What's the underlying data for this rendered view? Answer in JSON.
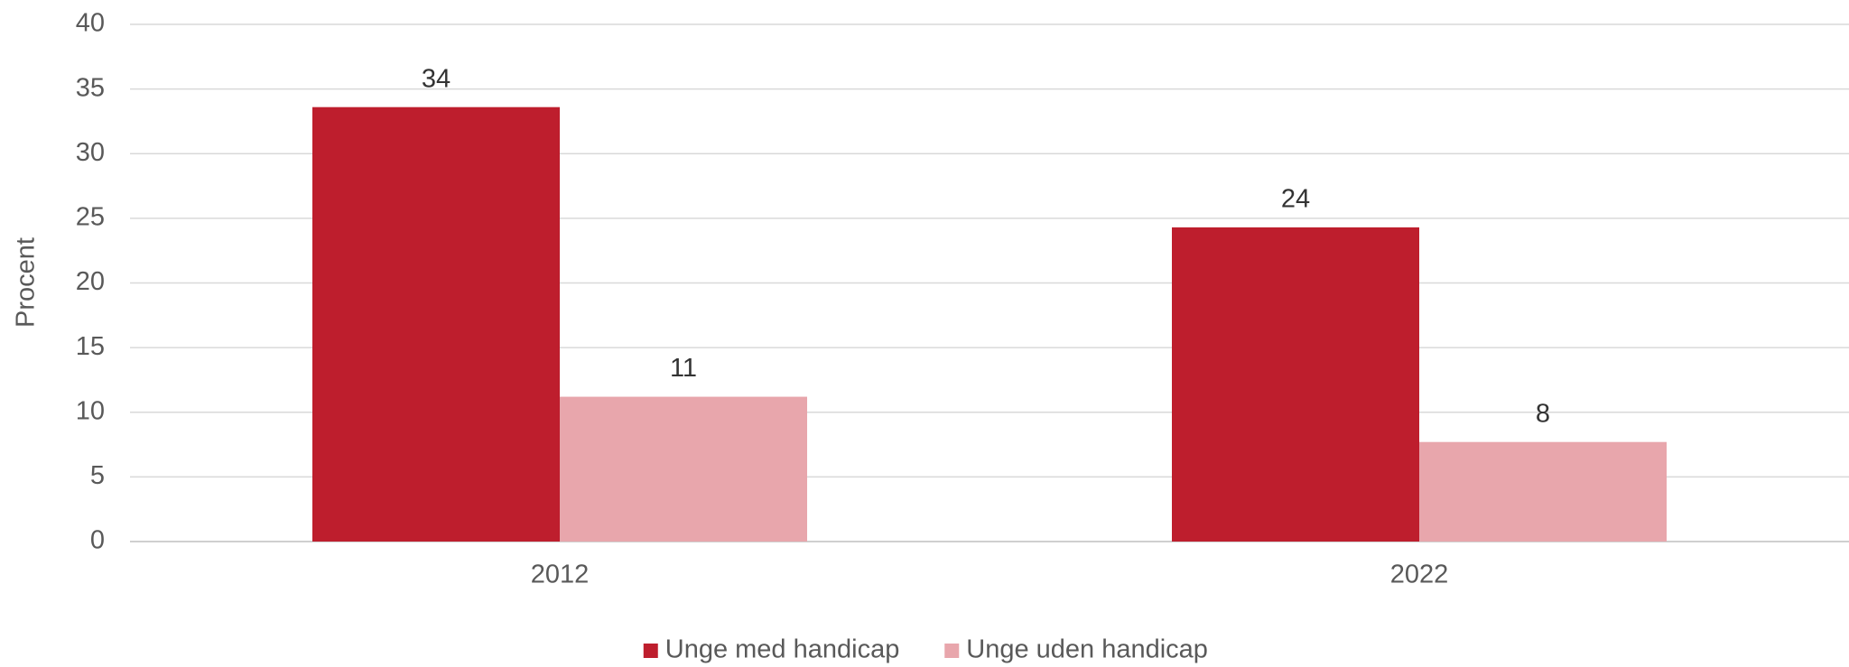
{
  "chart_data": {
    "type": "bar",
    "y_label": "Procent",
    "categories": [
      "2012",
      "2022"
    ],
    "series": [
      {
        "name": "Unge med handicap",
        "color": "#be1e2d",
        "values": [
          33.6,
          24.3
        ],
        "value_labels": [
          "34",
          "24"
        ]
      },
      {
        "name": "Unge uden handicap",
        "color": "#e8a6ac",
        "values": [
          11.2,
          7.7
        ],
        "value_labels": [
          "11",
          "8"
        ]
      }
    ],
    "ylim": [
      0,
      40
    ],
    "yticks": [
      0,
      5,
      10,
      15,
      20,
      25,
      30,
      35,
      40
    ],
    "grid": true,
    "legend": "bottom"
  }
}
